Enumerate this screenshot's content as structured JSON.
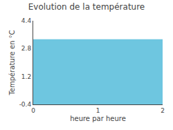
{
  "chart_data": {
    "type": "area",
    "title": "Evolution de la température",
    "xlabel": "heure par heure",
    "ylabel": "Température en °C",
    "x": [
      0,
      2
    ],
    "values": [
      3.3,
      3.3
    ],
    "color": "#6ec6e0",
    "xlim": [
      0,
      2
    ],
    "xticks": [
      0,
      1,
      2
    ],
    "ylim": [
      -0.4,
      4.4
    ],
    "yticks": [
      -0.4,
      1.2,
      2.8,
      4.4
    ],
    "grid": true
  }
}
